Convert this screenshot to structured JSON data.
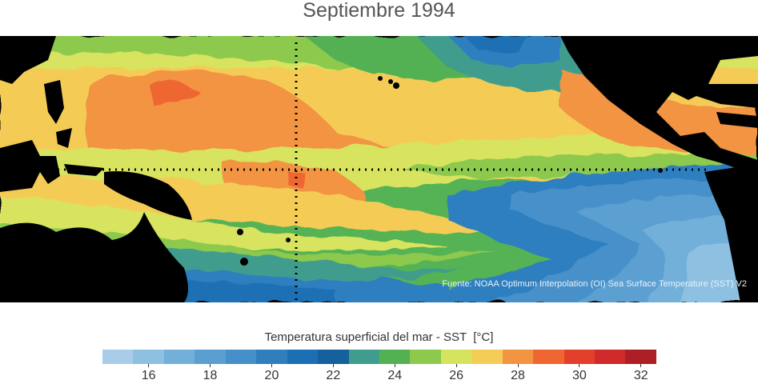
{
  "title": "Septiembre 1994",
  "credit": "Fuente: NOAA Optimum Interpolation (OI) Sea Surface Temperature (SST) V2",
  "colorbar": {
    "label": "Temperatura superficial del mar - SST  [°C]",
    "min": 15,
    "step": 1,
    "colors": [
      "#a9cde8",
      "#8ec0e2",
      "#72afd9",
      "#5b9fd1",
      "#4690c9",
      "#2f7fbf",
      "#1c6fb3",
      "#16609e",
      "#3f9d8d",
      "#53b153",
      "#8cc94d",
      "#d6e35f",
      "#f5cd56",
      "#f29442",
      "#ee6630",
      "#e2402a",
      "#d02a2b",
      "#ab1f25"
    ],
    "ticks": [
      "16",
      "18",
      "20",
      "22",
      "24",
      "26",
      "28",
      "30",
      "32"
    ]
  },
  "chart_data": {
    "type": "heatmap",
    "title": "Septiembre 1994",
    "variable": "Temperatura superficial del mar - SST",
    "units": "°C",
    "scale_min": 15,
    "scale_max": 33,
    "reference_lines": [
      "dotted vertical line",
      "dotted horizontal line"
    ]
  }
}
